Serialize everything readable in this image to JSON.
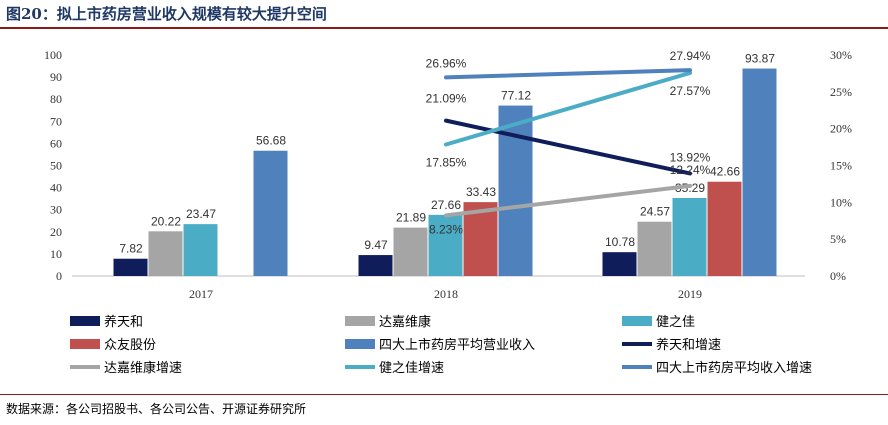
{
  "figure": {
    "title": "图20：拟上市药房营业收入规模有较大提升空间",
    "source": "数据来源：各公司招股书、各公司公告、开源证券研究所"
  },
  "chart_data": {
    "type": "bar",
    "categories": [
      "2017",
      "2018",
      "2019"
    ],
    "ylim": [
      0,
      100
    ],
    "yticks": [
      0,
      10,
      20,
      30,
      40,
      50,
      60,
      70,
      80,
      90,
      100
    ],
    "y2lim": [
      0,
      30
    ],
    "y2ticks": [
      "0%",
      "5%",
      "10%",
      "15%",
      "20%",
      "25%",
      "30%"
    ],
    "series": [
      {
        "name": "养天和",
        "color": "#0f1e5a",
        "values": [
          7.82,
          9.47,
          10.78
        ],
        "labels": [
          "7.82",
          "9.47",
          "10.78"
        ]
      },
      {
        "name": "达嘉维康",
        "color": "#a5a5a5",
        "values": [
          20.22,
          21.89,
          24.57
        ],
        "labels": [
          "20.22",
          "21.89",
          "24.57"
        ]
      },
      {
        "name": "健之佳",
        "color": "#4bacc6",
        "values": [
          23.47,
          27.66,
          35.29
        ],
        "labels": [
          "23.47",
          "27.66",
          "35.29"
        ]
      },
      {
        "name": "众友股份",
        "color": "#c0504d",
        "values": [
          null,
          33.43,
          42.66
        ],
        "labels": [
          "",
          "33.43",
          "42.66"
        ]
      },
      {
        "name": "四大上市药房平均营业收入",
        "color": "#4f81bd",
        "values": [
          56.68,
          77.12,
          93.87
        ],
        "labels": [
          "56.68",
          "77.12",
          "93.87"
        ]
      }
    ],
    "lines": [
      {
        "name": "养天和增速",
        "color": "#0f1e5a",
        "values": [
          21.09,
          13.92
        ],
        "labels": [
          "21.09%",
          "13.92%"
        ]
      },
      {
        "name": "达嘉维康增速",
        "color": "#a5a5a5",
        "values": [
          8.23,
          12.24
        ],
        "labels": [
          "8.23%",
          "12.24%"
        ]
      },
      {
        "name": "健之佳增速",
        "color": "#4bacc6",
        "values": [
          17.85,
          27.57
        ],
        "labels": [
          "17.85%",
          "27.57%"
        ]
      },
      {
        "name": "四大上市药房平均收入增速",
        "color": "#4f81bd",
        "values": [
          26.96,
          27.94
        ],
        "labels": [
          "26.96%",
          "27.94%"
        ]
      }
    ],
    "legend_position": "bottom"
  }
}
